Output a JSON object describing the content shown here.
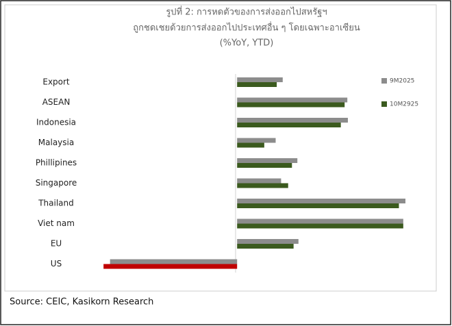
{
  "chart_data": {
    "type": "hbar",
    "title": "รูปที่ 2: การหดตัวของการส่งออกไปสหรัฐฯ",
    "subtitle": "ถูกชดเชยด้วยการส่งออกไปประเทศอื่น ๆ โดยเฉพาะอาเซียน",
    "unit_label": "(%YoY, YTD)",
    "categories": [
      "Export",
      "ASEAN",
      "Indonesia",
      "Malaysia",
      "Phillipines",
      "Singapore",
      "Thailand",
      "Viet nam",
      "EU",
      "US"
    ],
    "series": [
      {
        "name": "9M2025",
        "color": "#8c8c8c",
        "values": [
          8.4,
          20.3,
          20.4,
          7.1,
          11.1,
          8.1,
          31,
          30.6,
          11.3,
          -23.4
        ]
      },
      {
        "name": "10M2925",
        "color": "#3b5a1e",
        "values": [
          7.3,
          19.8,
          19.1,
          5,
          10.1,
          9.4,
          29.8,
          30.6,
          10.4,
          -24.6
        ],
        "point_colors": [
          "#3b5a1e",
          "#3b5a1e",
          "#3b5a1e",
          "#3b5a1e",
          "#3b5a1e",
          "#3b5a1e",
          "#3b5a1e",
          "#3b5a1e",
          "#3b5a1e",
          "#c00000"
        ]
      }
    ],
    "xlim": [
      -25,
      31
    ],
    "legend": "right",
    "source": "Source: CEIC, Kasikorn Research"
  }
}
